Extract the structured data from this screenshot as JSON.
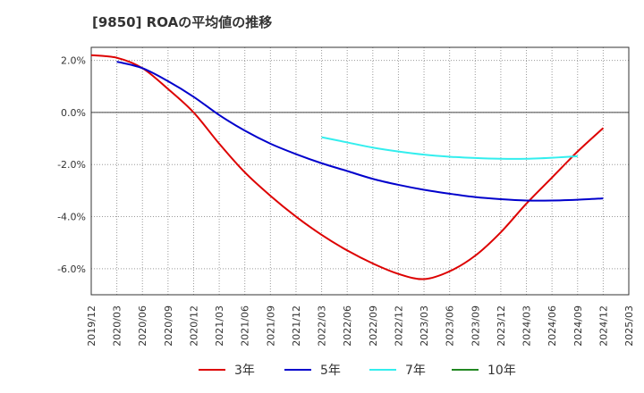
{
  "title": "[9850]  ROAの平均値の推移",
  "chart_data": {
    "type": "line",
    "x_labels": [
      "2019/12",
      "2020/03",
      "2020/06",
      "2020/09",
      "2020/12",
      "2021/03",
      "2021/06",
      "2021/09",
      "2021/12",
      "2022/03",
      "2022/06",
      "2022/09",
      "2022/12",
      "2023/03",
      "2023/06",
      "2023/09",
      "2023/12",
      "2024/03",
      "2024/06",
      "2024/09",
      "2024/12",
      "2025/03"
    ],
    "ylim": [
      -7.0,
      2.5
    ],
    "yticks": [
      2.0,
      0.0,
      -2.0,
      -4.0,
      -6.0
    ],
    "ytick_labels": [
      "2.0%",
      "0.0%",
      "-2.0%",
      "-4.0%",
      "-6.0%"
    ],
    "grid": true,
    "legend_position": "bottom",
    "series": [
      {
        "name": "3年",
        "color": "#dd0000",
        "start_index": 0,
        "values": [
          2.2,
          2.1,
          1.7,
          0.9,
          0.0,
          -1.2,
          -2.3,
          -3.2,
          -4.0,
          -4.7,
          -5.3,
          -5.8,
          -6.2,
          -6.4,
          -6.1,
          -5.5,
          -4.6,
          -3.5,
          -2.5,
          -1.5,
          -0.6
        ]
      },
      {
        "name": "5年",
        "color": "#0000cc",
        "start_index": 1,
        "values": [
          1.95,
          1.7,
          1.2,
          0.6,
          -0.1,
          -0.7,
          -1.2,
          -1.6,
          -1.95,
          -2.25,
          -2.55,
          -2.78,
          -2.97,
          -3.12,
          -3.25,
          -3.33,
          -3.38,
          -3.38,
          -3.35,
          -3.3
        ]
      },
      {
        "name": "7年",
        "color": "#33eeee",
        "start_index": 9,
        "values": [
          -0.95,
          -1.15,
          -1.35,
          -1.5,
          -1.62,
          -1.7,
          -1.75,
          -1.78,
          -1.78,
          -1.74,
          -1.68
        ]
      },
      {
        "name": "10年",
        "color": "#228822",
        "start_index": 0,
        "values": []
      }
    ]
  }
}
